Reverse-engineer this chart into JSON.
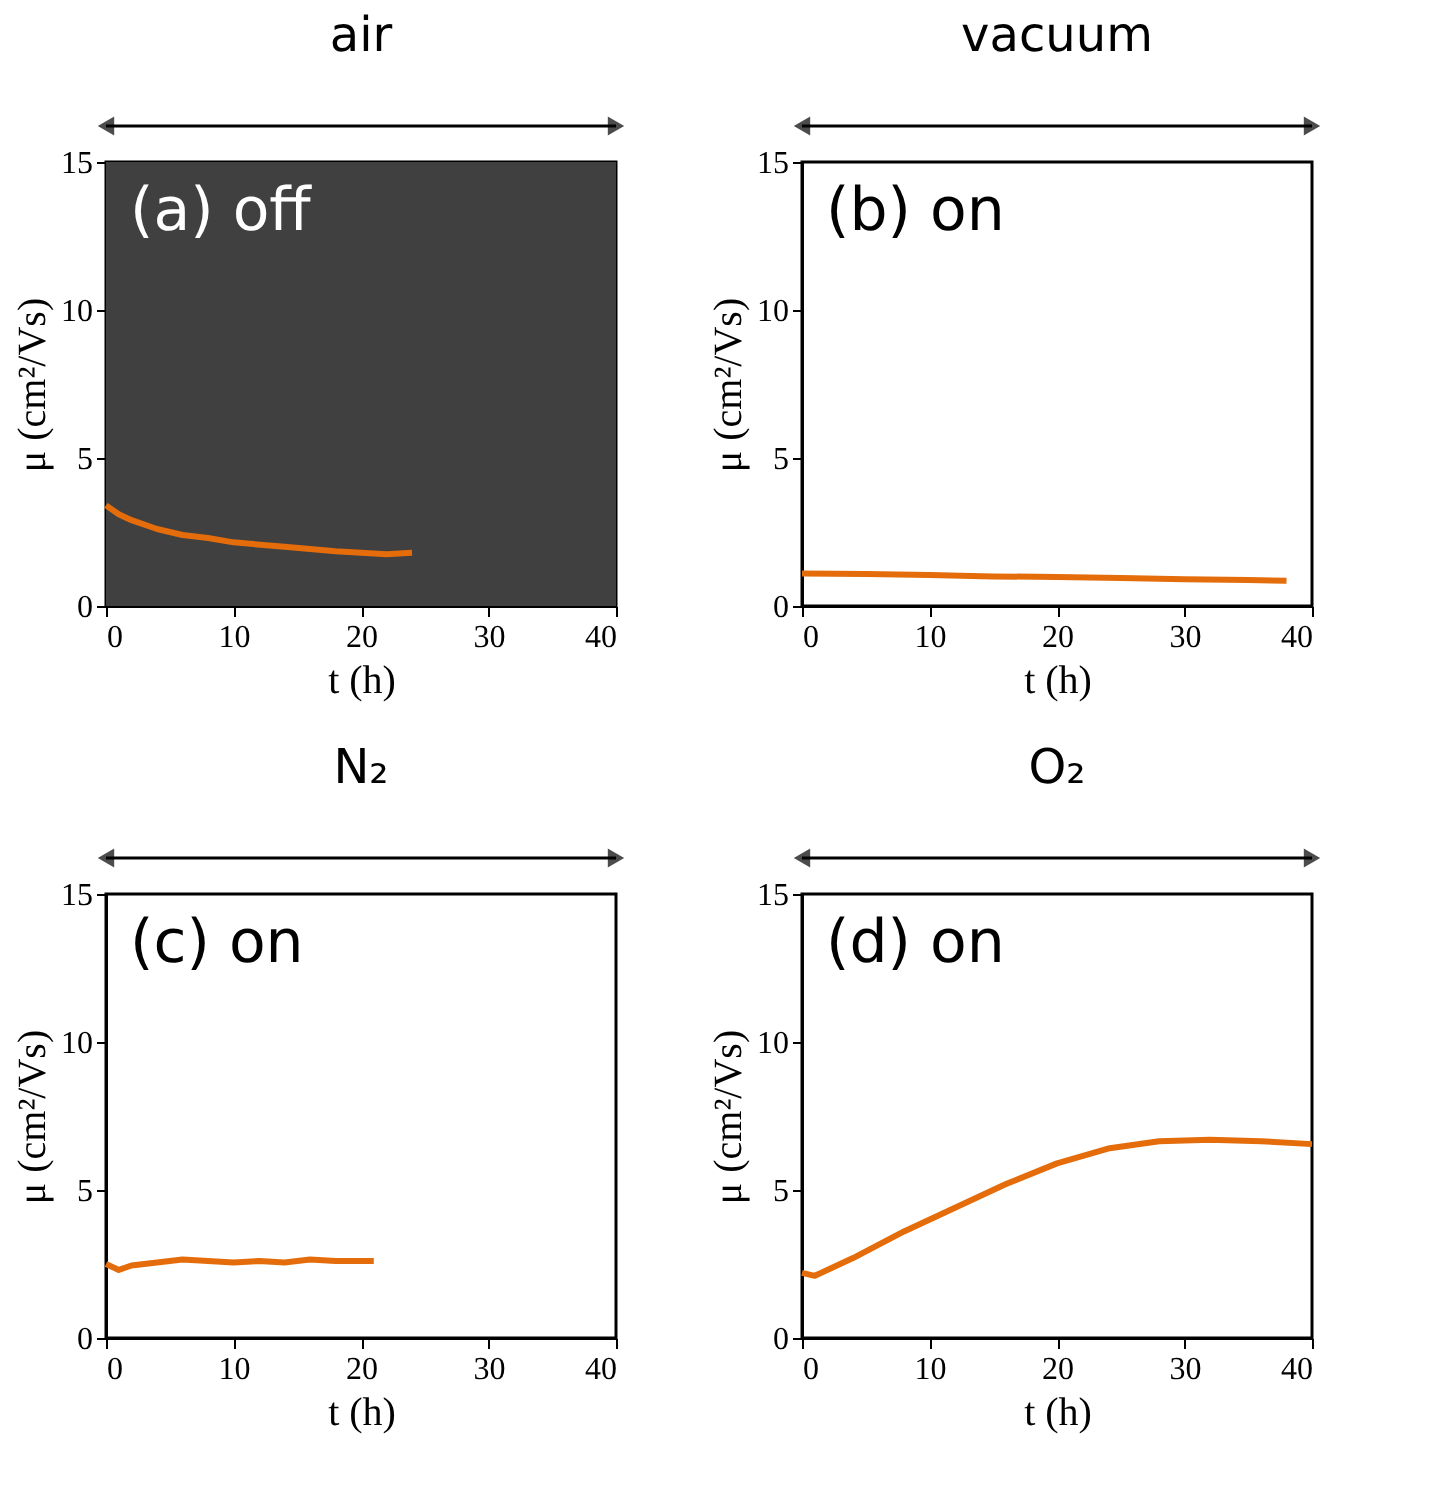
{
  "chart_data": [
    {
      "type": "line",
      "title": "air",
      "xlabel": "t (h)",
      "ylabel": "μ (cm²/Vs)",
      "annotations": [
        "(a) off"
      ],
      "bands": [
        {
          "axis": "x",
          "from": 0,
          "to": 40,
          "color": "#404040"
        }
      ],
      "xlim": [
        0,
        40
      ],
      "xticks": [
        0,
        10,
        20,
        30,
        40
      ],
      "ylim": [
        0,
        15
      ],
      "yticks": [
        0,
        5,
        10,
        15
      ],
      "grid": false,
      "series": [
        {
          "color": "#e46c0a",
          "x": [
            0,
            1,
            2,
            4,
            6,
            8,
            10,
            14,
            18,
            20,
            22,
            24
          ],
          "values": [
            3.4,
            3.1,
            2.9,
            2.6,
            2.4,
            2.3,
            2.15,
            2.0,
            1.85,
            1.8,
            1.75,
            1.8
          ]
        }
      ]
    },
    {
      "type": "line",
      "title": "vacuum",
      "xlabel": "t (h)",
      "ylabel": "μ (cm²/Vs)",
      "annotations": [
        "(b) on"
      ],
      "xlim": [
        0,
        40
      ],
      "xticks": [
        0,
        10,
        20,
        30,
        40
      ],
      "ylim": [
        0,
        15
      ],
      "yticks": [
        0,
        5,
        10,
        15
      ],
      "grid": false,
      "series": [
        {
          "color": "#e46c0a",
          "x": [
            0,
            5,
            10,
            15,
            20,
            25,
            30,
            35,
            38
          ],
          "values": [
            1.1,
            1.08,
            1.05,
            1.0,
            0.98,
            0.95,
            0.9,
            0.88,
            0.85
          ]
        }
      ]
    },
    {
      "type": "line",
      "title": "N₂",
      "xlabel": "t (h)",
      "ylabel": "μ (cm²/Vs)",
      "annotations": [
        "(c) on"
      ],
      "xlim": [
        0,
        40
      ],
      "xticks": [
        0,
        10,
        20,
        30,
        40
      ],
      "ylim": [
        0,
        15
      ],
      "yticks": [
        0,
        5,
        10,
        15
      ],
      "grid": false,
      "series": [
        {
          "color": "#e46c0a",
          "x": [
            0,
            1,
            2,
            4,
            6,
            8,
            10,
            12,
            14,
            16,
            18,
            21
          ],
          "values": [
            2.5,
            2.3,
            2.45,
            2.55,
            2.65,
            2.6,
            2.55,
            2.6,
            2.55,
            2.65,
            2.6,
            2.6
          ]
        }
      ]
    },
    {
      "type": "line",
      "title": "O₂",
      "xlabel": "t (h)",
      "ylabel": "μ (cm²/Vs)",
      "annotations": [
        "(d) on"
      ],
      "xlim": [
        0,
        40
      ],
      "xticks": [
        0,
        10,
        20,
        30,
        40
      ],
      "ylim": [
        0,
        15
      ],
      "yticks": [
        0,
        5,
        10,
        15
      ],
      "grid": false,
      "series": [
        {
          "color": "#e46c0a",
          "x": [
            0,
            1,
            4,
            8,
            12,
            16,
            20,
            24,
            28,
            32,
            36,
            40
          ],
          "values": [
            2.2,
            2.1,
            2.7,
            3.6,
            4.4,
            5.2,
            5.9,
            6.4,
            6.65,
            6.7,
            6.65,
            6.55
          ]
        }
      ]
    }
  ]
}
